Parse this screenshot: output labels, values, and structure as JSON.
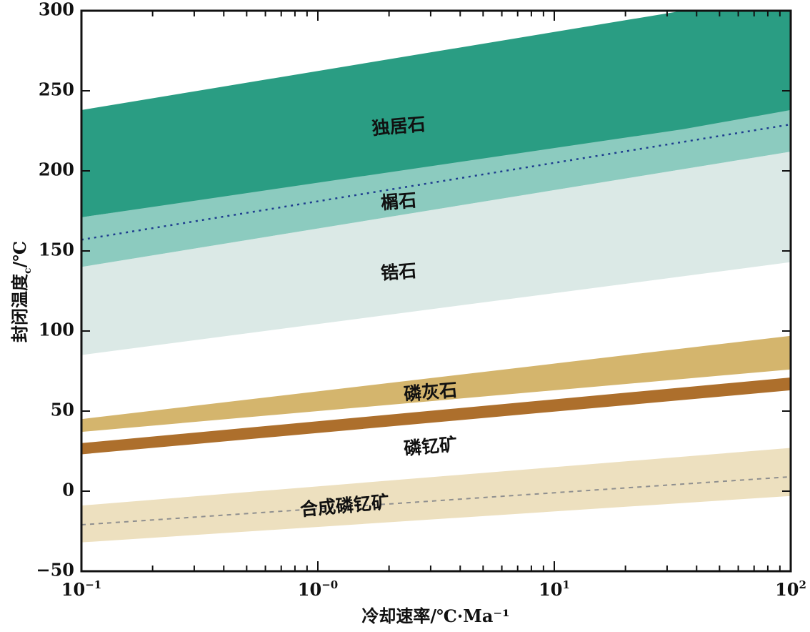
{
  "chart_data": {
    "type": "area",
    "x_scale": "log",
    "xlim": [
      0.1,
      100
    ],
    "ylim": [
      -50,
      300
    ],
    "grid": false,
    "xlabel": "冷却速率/℃·Ma⁻¹",
    "ylabel": "封闭温度c/℃",
    "ylabel_main": "封闭温度",
    "ylabel_sub": "c",
    "ylabel_unit": "/℃",
    "x_ticks": [
      {
        "value": 0.1,
        "base": "10",
        "exp": "−1"
      },
      {
        "value": 1,
        "base": "10",
        "exp": "−0"
      },
      {
        "value": 10,
        "base": "10",
        "exp": "1"
      },
      {
        "value": 100,
        "base": "10",
        "exp": "2"
      }
    ],
    "y_ticks": [
      {
        "value": 300,
        "label": "300"
      },
      {
        "value": 250,
        "label": "250"
      },
      {
        "value": 200,
        "label": "200"
      },
      {
        "value": 150,
        "label": "150"
      },
      {
        "value": 100,
        "label": "100"
      },
      {
        "value": 50,
        "label": "50"
      },
      {
        "value": 0,
        "label": "0"
      },
      {
        "value": -50,
        "label": "−50"
      }
    ],
    "bands": [
      {
        "name": "锆石",
        "color": "#dbe9e6",
        "x": [
          0.1,
          100
        ],
        "lower": [
          85,
          143
        ],
        "upper": [
          140,
          212
        ],
        "label_x": 2.2,
        "label_y": 136
      },
      {
        "name": "榍石",
        "color": "#8ccbbf",
        "x": [
          0.1,
          100
        ],
        "lower": [
          140,
          212
        ],
        "upper": [
          171,
          238
        ],
        "label_x": 2.2,
        "label_y": 180
      },
      {
        "name": "独居石",
        "color": "#2a9d83",
        "x": [
          0.1,
          35,
          100
        ],
        "lower": [
          171,
          226,
          238
        ],
        "upper": [
          238,
          300,
          300
        ],
        "label_x": 2.2,
        "label_y": 227
      },
      {
        "name": "磷灰石",
        "color": "#d4b56d",
        "x": [
          0.1,
          100
        ],
        "lower": [
          37,
          76
        ],
        "upper": [
          45,
          97
        ],
        "label_x": 3.0,
        "label_y": 61
      },
      {
        "name": "磷钇矿",
        "color": "#ad6f2c",
        "x": [
          0.1,
          100
        ],
        "lower": [
          23,
          63
        ],
        "upper": [
          30,
          71
        ],
        "label_x": 3.0,
        "label_y": 27
      },
      {
        "name": "合成磷钇矿",
        "color": "#ede0bf",
        "x": [
          0.1,
          100
        ],
        "lower": [
          -32,
          -3
        ],
        "upper": [
          -9,
          27
        ],
        "label_x": 1.3,
        "label_y": -10
      }
    ],
    "lines": [
      {
        "color": "#1f3e8f",
        "style": "dotted",
        "x": [
          0.1,
          100
        ],
        "y": [
          157,
          229
        ]
      },
      {
        "color": "#8f8f8f",
        "style": "dashed",
        "x": [
          0.1,
          100
        ],
        "y": [
          -21,
          9
        ]
      }
    ]
  }
}
